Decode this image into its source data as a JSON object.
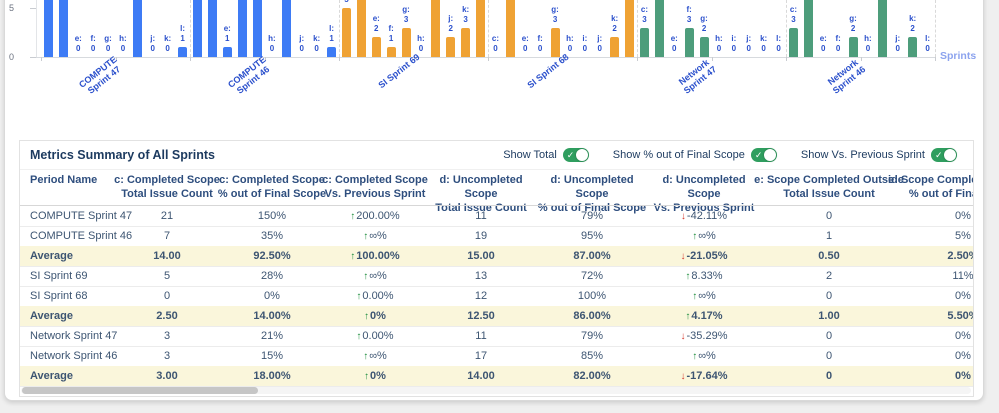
{
  "colors": {
    "compute_bar": "#3d7bf5",
    "si_bar": "#efa234",
    "network_bar": "#4d9d7b",
    "bar_label": "#2b50cc",
    "axis_label": "#8ca3ee",
    "average_row_bg": "#faf6db",
    "toggle_on": "#2f9e5f",
    "trend_up": "#1e8e3e",
    "trend_down": "#d63b2f"
  },
  "chart_data": {
    "type": "bar",
    "xlabel": "Sprints",
    "y_ticks": [
      0,
      5
    ],
    "ylim_visible": [
      0,
      5.8
    ],
    "grid": false,
    "bar_keys": [
      "c",
      "d",
      "e",
      "f",
      "g",
      "h",
      "i",
      "j",
      "k",
      "l"
    ],
    "groups": [
      {
        "name": "COMPUTE Sprint 47",
        "label_lines": [
          "COMPUTE",
          "Sprint 47"
        ],
        "color": "#3d7bf5",
        "values": [
          null,
          null,
          0,
          0,
          0,
          0,
          null,
          0,
          0,
          1
        ]
      },
      {
        "name": "COMPUTE Sprint 46",
        "label_lines": [
          "COMPUTE",
          "Sprint 46"
        ],
        "color": "#3d7bf5",
        "values": [
          null,
          null,
          1,
          null,
          null,
          0,
          null,
          0,
          0,
          1
        ]
      },
      {
        "name": "SI Sprint 69",
        "label_lines": [
          "SI Sprint 69"
        ],
        "color": "#efa234",
        "values": [
          5,
          null,
          2,
          1,
          3,
          0,
          null,
          2,
          3,
          null
        ]
      },
      {
        "name": "SI Sprint 68",
        "label_lines": [
          "SI Sprint 68"
        ],
        "color": "#efa234",
        "values": [
          0,
          null,
          0,
          0,
          3,
          0,
          0,
          0,
          2,
          null
        ]
      },
      {
        "name": "Network Sprint 47",
        "label_lines": [
          "Network",
          "Sprint 47"
        ],
        "color": "#4d9d7b",
        "values": [
          3,
          null,
          0,
          3,
          2,
          0,
          0,
          0,
          0,
          0
        ]
      },
      {
        "name": "Network Sprint 46",
        "label_lines": [
          "Network",
          "Sprint 46"
        ],
        "color": "#4d9d7b",
        "values": [
          3,
          null,
          0,
          0,
          2,
          0,
          null,
          0,
          2,
          0
        ]
      }
    ]
  },
  "summary": {
    "title": "Metrics Summary of All Sprints",
    "toggles": [
      {
        "label": "Show Total",
        "on": true
      },
      {
        "label": "Show % out of Final Scope",
        "on": true
      },
      {
        "label": "Show Vs. Previous Sprint",
        "on": true
      }
    ],
    "columns": [
      {
        "l1": "Period Name",
        "l2": ""
      },
      {
        "l1": "c: Completed Scope",
        "l2": "Total Issue Count"
      },
      {
        "l1": "c: Completed Scope",
        "l2": "% out of Final Scope"
      },
      {
        "l1": "c: Completed Scope",
        "l2": "Vs. Previous Sprint"
      },
      {
        "l1": "d: Uncompleted Scope",
        "l2": "Total Issue Count"
      },
      {
        "l1": "d: Uncompleted Scope",
        "l2": "% out of Final Scope"
      },
      {
        "l1": "d: Uncompleted Scope",
        "l2": "Vs. Previous Sprint"
      },
      {
        "l1": "e: Scope Completed Outside",
        "l2": "Total Issue Count"
      },
      {
        "l1": "e: Scope Completed Outside",
        "l2": "% out of Final Scope"
      }
    ],
    "rows": [
      {
        "name": "COMPUTE Sprint 47",
        "average": false,
        "cells": [
          "21",
          "150%",
          {
            "t": "200.00%",
            "d": "up"
          },
          "11",
          "79%",
          {
            "t": "-42.11%",
            "d": "down"
          },
          "0",
          "0%"
        ]
      },
      {
        "name": "COMPUTE Sprint 46",
        "average": false,
        "cells": [
          "7",
          "35%",
          {
            "t": "∞%",
            "d": "up"
          },
          "19",
          "95%",
          {
            "t": "∞%",
            "d": "up"
          },
          "1",
          "5%"
        ]
      },
      {
        "name": "Average",
        "average": true,
        "cells": [
          "14.00",
          "92.50%",
          {
            "t": "100.00%",
            "d": "up"
          },
          "15.00",
          "87.00%",
          {
            "t": "-21.05%",
            "d": "down"
          },
          "0.50",
          "2.50%"
        ]
      },
      {
        "name": "SI Sprint 69",
        "average": false,
        "cells": [
          "5",
          "28%",
          {
            "t": "∞%",
            "d": "up"
          },
          "13",
          "72%",
          {
            "t": "8.33%",
            "d": "up"
          },
          "2",
          "11%"
        ]
      },
      {
        "name": "SI Sprint 68",
        "average": false,
        "cells": [
          "0",
          "0%",
          {
            "t": "0.00%",
            "d": "up"
          },
          "12",
          "100%",
          {
            "t": "∞%",
            "d": "up"
          },
          "0",
          "0%"
        ]
      },
      {
        "name": "Average",
        "average": true,
        "cells": [
          "2.50",
          "14.00%",
          {
            "t": "0%",
            "d": "up"
          },
          "12.50",
          "86.00%",
          {
            "t": "4.17%",
            "d": "up"
          },
          "1.00",
          "5.50%"
        ]
      },
      {
        "name": "Network Sprint 47",
        "average": false,
        "cells": [
          "3",
          "21%",
          {
            "t": "0.00%",
            "d": "up"
          },
          "11",
          "79%",
          {
            "t": "-35.29%",
            "d": "down"
          },
          "0",
          "0%"
        ]
      },
      {
        "name": "Network Sprint 46",
        "average": false,
        "cells": [
          "3",
          "15%",
          {
            "t": "∞%",
            "d": "up"
          },
          "17",
          "85%",
          {
            "t": "∞%",
            "d": "up"
          },
          "0",
          "0%"
        ]
      },
      {
        "name": "Average",
        "average": true,
        "cells": [
          "3.00",
          "18.00%",
          {
            "t": "0%",
            "d": "up"
          },
          "14.00",
          "82.00%",
          {
            "t": "-17.64%",
            "d": "down"
          },
          "0",
          "0%"
        ]
      }
    ]
  }
}
